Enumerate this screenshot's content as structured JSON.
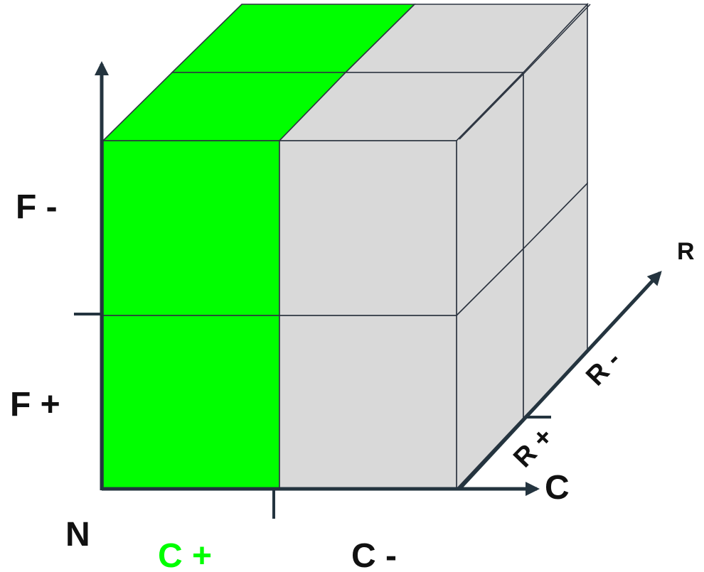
{
  "colors": {
    "highlight": "#00ff00",
    "cube_face": "#d9d9d9",
    "cube_edge": "#2c3440",
    "axis": "#24343f",
    "highlight_label": "#00ff00",
    "label": "#111111"
  },
  "axes": {
    "vertical": {
      "upper_label": "F -",
      "lower_label": "F +"
    },
    "horizontal": {
      "origin_label": "N",
      "name": "C",
      "left_label": "C +",
      "right_label": "C -"
    },
    "depth": {
      "name": "R",
      "near_label": "R +",
      "far_label": "R -"
    }
  },
  "cube": {
    "divisions": 2,
    "highlighted_slice": "C +"
  }
}
